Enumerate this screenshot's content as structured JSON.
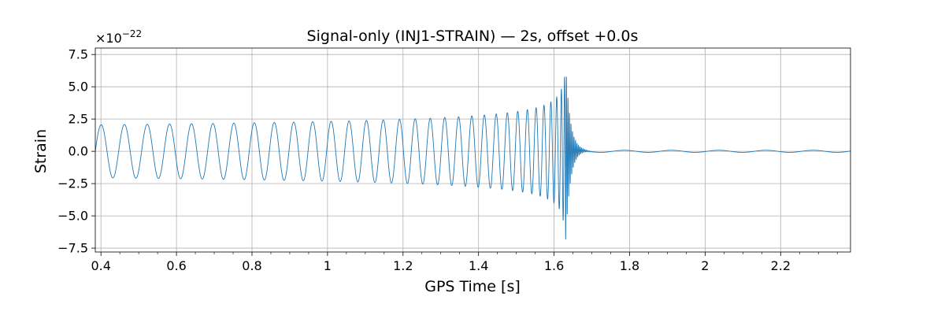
{
  "chart_data": {
    "type": "line",
    "title": "Signal-only (INJ1-STRAIN) — 2s, offset +0.0s",
    "xlabel": "GPS Time [s]",
    "ylabel": "Strain",
    "y_scale_label": "×10",
    "y_scale_exponent": "−22",
    "xlim": [
      0.385,
      2.385
    ],
    "ylim": [
      -7.8,
      8.0
    ],
    "x_ticks": [
      0.4,
      0.6,
      0.8,
      1.0,
      1.2,
      1.4,
      1.6,
      1.8,
      2.0,
      2.2
    ],
    "x_tick_labels": [
      "0.4",
      "0.6",
      "0.8",
      "1",
      "1.2",
      "1.4",
      "1.6",
      "1.8",
      "2",
      "2.2"
    ],
    "y_ticks": [
      7.5,
      5.0,
      2.5,
      0.0,
      -2.5,
      -5.0,
      -7.5
    ],
    "y_tick_labels": [
      "7.5",
      "5.0",
      "2.5",
      "0.0",
      "−2.5",
      "−5.0",
      "−7.5"
    ],
    "grid": true,
    "series": [
      {
        "color": "#1f77b4",
        "signal": {
          "merger_time": 1.63,
          "freq_start": 16.0,
          "amp_start": 2.05,
          "amp_peak": 7.3,
          "ringdown_decay": 0.012,
          "tail_amp": 0.08
        }
      }
    ]
  }
}
